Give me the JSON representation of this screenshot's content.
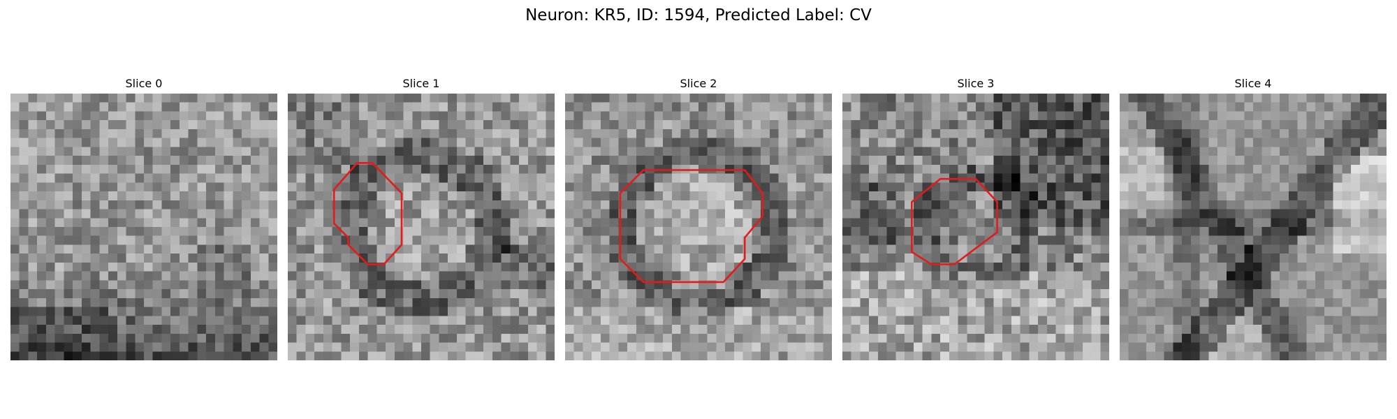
{
  "figure": {
    "title": "Neuron: KR5, ID: 1594, Predicted Label: CV",
    "contour_color": "#e41a1c"
  },
  "panels": [
    {
      "title": "Slice 0",
      "has_contour": false
    },
    {
      "title": "Slice 1",
      "has_contour": true
    },
    {
      "title": "Slice 2",
      "has_contour": true
    },
    {
      "title": "Slice 3",
      "has_contour": true
    },
    {
      "title": "Slice 4",
      "has_contour": false
    }
  ]
}
